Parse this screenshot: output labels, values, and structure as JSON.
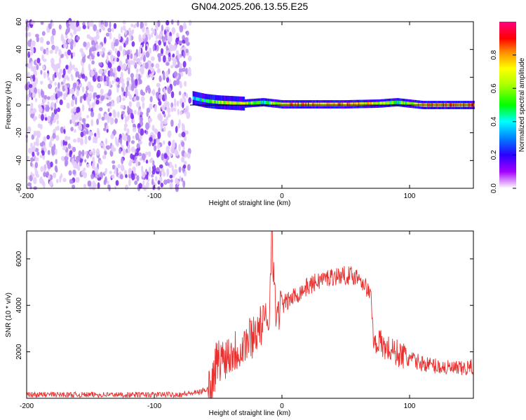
{
  "title": "GN04.2025.206.13.55.E25",
  "chart_data": [
    {
      "type": "heatmap",
      "xlabel": "Height of straight line (km)",
      "ylabel": "Frequency (Hz)",
      "xlim": [
        -200,
        150
      ],
      "ylim": [
        -60,
        60
      ],
      "xticks": [
        -200,
        -100,
        0,
        100
      ],
      "xtick_labels": [
        "-200",
        "-100",
        "0",
        "100"
      ],
      "yticks": [
        -60,
        -40,
        -20,
        0,
        20,
        40,
        60
      ],
      "ytick_labels": [
        "-60",
        "-40",
        "-20",
        "0",
        "20",
        "40",
        "60"
      ],
      "colorbar": {
        "label": "Normalized spectral amplitude",
        "range": [
          0,
          1
        ],
        "ticks": [
          0,
          0.2,
          0.4,
          0.6,
          0.8
        ],
        "tick_labels": [
          "0.0",
          "0.2",
          "0.4",
          "0.6",
          "0.8"
        ],
        "colormap": "rainbow (white-violet-blue-cyan-green-yellow-red-magenta)"
      },
      "regions": [
        {
          "x_range": [
            -200,
            -72
          ],
          "description": "noise",
          "amplitude": 0.1
        },
        {
          "x_range": [
            -72,
            150
          ],
          "description": "narrow band near 0 Hz",
          "center_freq": 0,
          "peak_amplitude": 0.9
        }
      ],
      "band_points": [
        {
          "x": -70,
          "freq": 5,
          "amp": 0.45
        },
        {
          "x": -60,
          "freq": 3,
          "amp": 0.6
        },
        {
          "x": -50,
          "freq": 2,
          "amp": 0.7
        },
        {
          "x": -40,
          "freq": 1.5,
          "amp": 0.8
        },
        {
          "x": -30,
          "freq": 1,
          "amp": 0.75
        },
        {
          "x": -15,
          "freq": 2,
          "amp": 0.55
        },
        {
          "x": 0,
          "freq": 0.5,
          "amp": 0.85
        },
        {
          "x": 25,
          "freq": 0.5,
          "amp": 0.9
        },
        {
          "x": 50,
          "freq": 0.5,
          "amp": 0.9
        },
        {
          "x": 75,
          "freq": 1,
          "amp": 0.8
        },
        {
          "x": 90,
          "freq": 2,
          "amp": 0.6
        },
        {
          "x": 110,
          "freq": 0,
          "amp": 0.9
        },
        {
          "x": 150,
          "freq": 0,
          "amp": 0.9
        }
      ]
    },
    {
      "type": "line",
      "xlabel": "Height of straight line (km)",
      "ylabel": "SNR (10 * v/v)",
      "xlim": [
        -200,
        150
      ],
      "ylim": [
        0,
        7200
      ],
      "xticks": [
        -200,
        -100,
        0,
        100
      ],
      "xtick_labels": [
        "-200",
        "-100",
        "0",
        "100"
      ],
      "yticks": [
        2000,
        4000,
        6000
      ],
      "ytick_labels": [
        "2000",
        "4000",
        "6000"
      ],
      "color": "#e8302e",
      "series": [
        {
          "x": [
            -200,
            -180,
            -160,
            -140,
            -120,
            -100,
            -80,
            -65,
            -55,
            -52,
            -45,
            -40,
            -35,
            -30,
            -25,
            -20,
            -15,
            -10,
            -8,
            -5,
            0,
            10,
            20,
            30,
            40,
            50,
            60,
            65,
            70,
            72,
            75,
            80,
            90,
            100,
            110,
            120,
            130,
            140,
            150
          ],
          "y": [
            150,
            160,
            150,
            160,
            150,
            160,
            170,
            250,
            500,
            1500,
            1800,
            2000,
            2100,
            2300,
            2600,
            2900,
            3200,
            3500,
            7200,
            3600,
            4000,
            4400,
            4800,
            5100,
            5250,
            5300,
            5250,
            4900,
            4300,
            2300,
            2500,
            2200,
            1950,
            1700,
            1500,
            1400,
            1300,
            1250,
            1350
          ]
        }
      ],
      "noise_envelope": [
        {
          "x_range": [
            -200,
            -58
          ],
          "amp": 120
        },
        {
          "x_range": [
            -58,
            -20
          ],
          "amp": 1000
        },
        {
          "x_range": [
            -20,
            0
          ],
          "amp": 900
        },
        {
          "x_range": [
            0,
            72
          ],
          "amp": 400
        },
        {
          "x_range": [
            72,
            100
          ],
          "amp": 600
        },
        {
          "x_range": [
            100,
            150
          ],
          "amp": 350
        }
      ]
    }
  ]
}
